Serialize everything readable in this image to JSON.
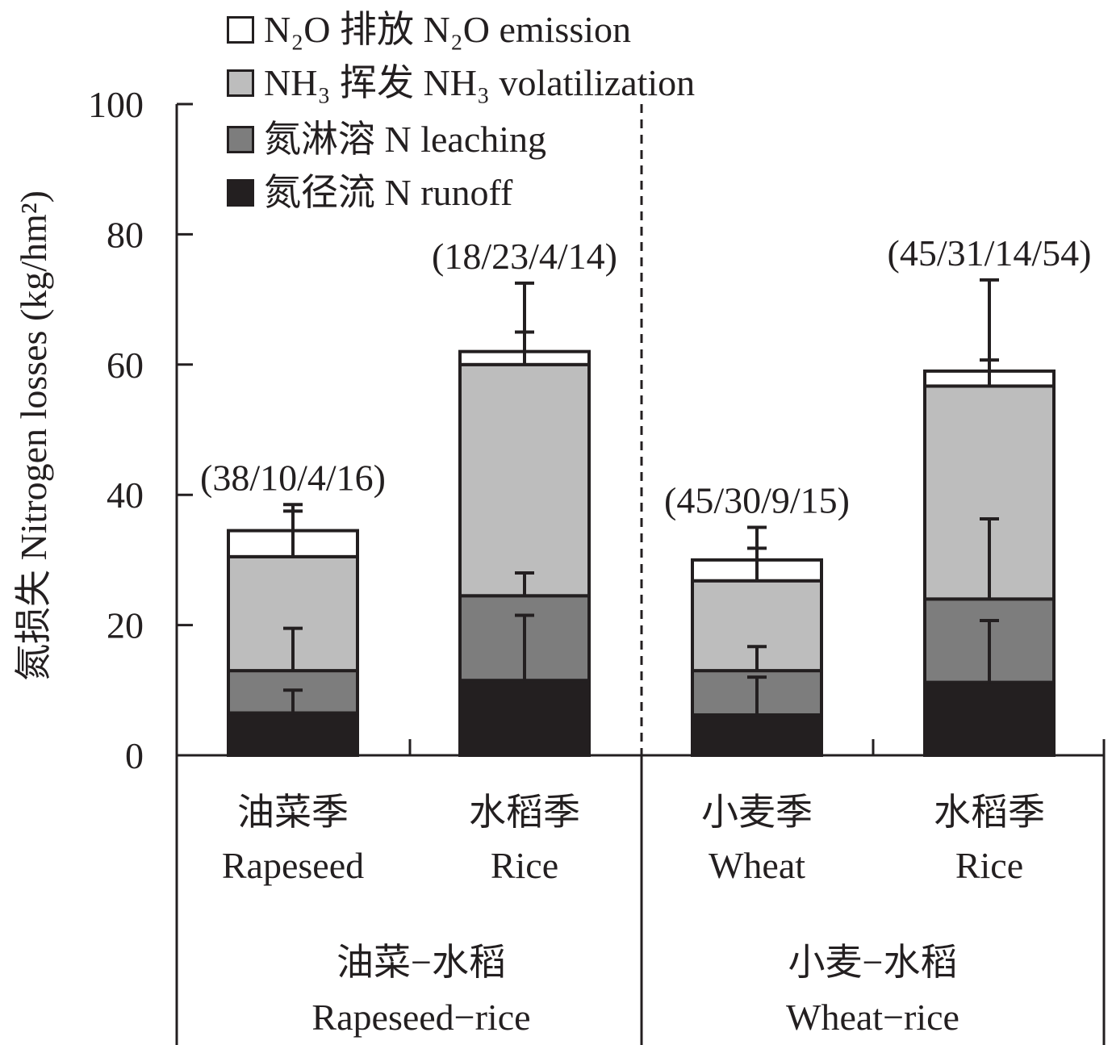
{
  "chart_data": {
    "type": "bar",
    "stacked": true,
    "ylabel": "氮损失 Nitrogen losses (kg/hm²)",
    "ylim": [
      0,
      100
    ],
    "yticks": [
      "0",
      "20",
      "40",
      "60",
      "80",
      "100"
    ],
    "grid": false,
    "legend_position": "top-left",
    "categories": [
      {
        "zh": "油菜季",
        "en": "Rapeseed"
      },
      {
        "zh": "水稻季",
        "en": "Rice"
      },
      {
        "zh": "小麦季",
        "en": "Wheat"
      },
      {
        "zh": "水稻季",
        "en": "Rice"
      }
    ],
    "groups": [
      {
        "zh": "油菜−水稻",
        "en": "Rapeseed−rice"
      },
      {
        "zh": "小麦−水稻",
        "en": "Wheat−rice"
      }
    ],
    "series": [
      {
        "name": "氮径流 N runoff",
        "color": "#231f20",
        "values": [
          6.5,
          11.5,
          6.2,
          11.2
        ],
        "error": [
          3.5,
          10.0,
          5.8,
          9.5
        ]
      },
      {
        "name": "氮淋溶 N leaching",
        "color": "#7d7d7d",
        "values": [
          6.5,
          13.0,
          6.8,
          12.8
        ],
        "error": [
          6.5,
          3.5,
          3.7,
          12.3
        ]
      },
      {
        "name": "NH₃ 挥发 NH₃ volatilization",
        "color": "#bdbdbd",
        "values": [
          17.5,
          35.5,
          13.8,
          32.7
        ],
        "error": [
          7.0,
          5.0,
          5.0,
          4.0
        ]
      },
      {
        "name": "N₂O 排放 N₂O emission",
        "color": "#ffffff",
        "values": [
          4.0,
          2.0,
          3.2,
          2.3
        ],
        "error": [
          4.0,
          10.5,
          5.0,
          14.0
        ]
      }
    ],
    "annotations": [
      "(38/10/4/16)",
      "(18/23/4/14)",
      "(45/30/9/15)",
      "(45/31/14/54)"
    ]
  },
  "legend": [
    {
      "name": "N₂O 排放 N₂O emission",
      "color": "#ffffff"
    },
    {
      "name": "NH₃ 挥发 NH₃ volatilization",
      "color": "#bdbdbd"
    },
    {
      "name": "氮淋溶 N leaching",
      "color": "#7d7d7d"
    },
    {
      "name": "氮径流 N runoff",
      "color": "#231f20"
    }
  ]
}
